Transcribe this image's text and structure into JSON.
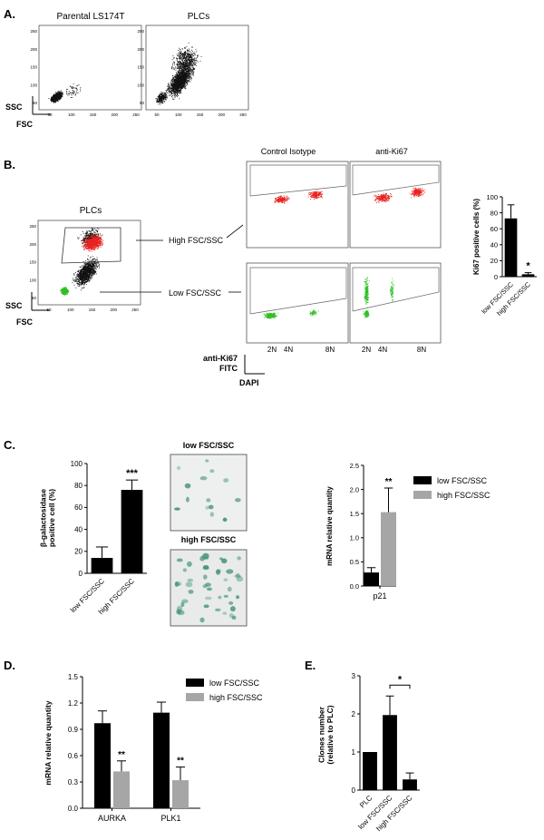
{
  "panels": {
    "A": {
      "letter": "A.",
      "plots": [
        {
          "title": "Parental LS174T",
          "yticks": [
            "250",
            "200",
            "150",
            "100",
            "50"
          ],
          "xticks": [
            "50",
            "100",
            "150",
            "200",
            "250"
          ]
        },
        {
          "title": "PLCs",
          "yticks": [
            "250",
            "200",
            "150",
            "100",
            "50"
          ],
          "xticks": [
            "50",
            "100",
            "150",
            "200",
            "250"
          ]
        }
      ],
      "y_axis": "SSC",
      "x_axis": "FSC"
    },
    "B": {
      "letter": "B.",
      "plc_title": "PLCs",
      "y_axis": "SSC",
      "x_axis": "FSC",
      "gate_high": "High FSC/SSC",
      "gate_low": "Low FSC/SSC",
      "col_titles": [
        "Control Isotype",
        "anti-Ki67"
      ],
      "ki67_axis": [
        "anti-Ki67",
        "FITC"
      ],
      "dapi_axis": "DAPI",
      "ploidy_ticks": [
        "2N",
        "4N",
        "8N"
      ],
      "colors": {
        "high_population": "#e8231f",
        "low_population": "#2fbf24",
        "other_events": "#111111"
      }
    },
    "C": {
      "letter": "C.",
      "micro_titles": [
        "low FSC/SSC",
        "high FSC/SSC"
      ],
      "stain_color": "#3f8f7a"
    },
    "D": {
      "letter": "D."
    },
    "E": {
      "letter": "E."
    }
  },
  "chart_data": [
    {
      "id": "B-ki67",
      "type": "bar",
      "categories": [
        "low FSC/SSC",
        "high FSC/SSC"
      ],
      "values": [
        73,
        3
      ],
      "errors": [
        17,
        2
      ],
      "colors": [
        "#000000",
        "#000000"
      ],
      "significance": [
        "",
        "*"
      ],
      "ylabel": "Ki67 positive cells (%)",
      "ylim": [
        0,
        100
      ],
      "yticks": [
        0,
        20,
        40,
        60,
        80,
        100
      ]
    },
    {
      "id": "C-bgal",
      "type": "bar",
      "categories": [
        "low FSC/SSC",
        "high FSC/SSC"
      ],
      "values": [
        14,
        76
      ],
      "errors": [
        10,
        9
      ],
      "colors": [
        "#000000",
        "#000000"
      ],
      "significance": [
        "",
        "***"
      ],
      "ylabel_lines": [
        "β-galactosidase",
        "positive cell (%)"
      ],
      "ylim": [
        0,
        100
      ],
      "yticks": [
        0,
        20,
        40,
        60,
        80,
        100
      ]
    },
    {
      "id": "C-p21",
      "type": "bar",
      "categories": [
        "p21"
      ],
      "series": [
        {
          "name": "low FSC/SSC",
          "values": [
            0.28
          ],
          "errors": [
            0.1
          ],
          "color": "#000000"
        },
        {
          "name": "high FSC/SSC",
          "values": [
            1.53
          ],
          "errors": [
            0.5
          ],
          "color": "#a6a6a6"
        }
      ],
      "significance": [
        "",
        "**"
      ],
      "ylabel": "mRNA relative quantity",
      "ylim": [
        0,
        2.5
      ],
      "yticks": [
        0,
        0.5,
        1.0,
        1.5,
        2.0,
        2.5
      ],
      "legend": "right"
    },
    {
      "id": "D",
      "type": "bar",
      "categories": [
        "AURKA",
        "PLK1"
      ],
      "series": [
        {
          "name": "low FSC/SSC",
          "values": [
            0.97,
            1.09
          ],
          "errors": [
            0.14,
            0.12
          ],
          "color": "#000000"
        },
        {
          "name": "high FSC/SSC",
          "values": [
            0.42,
            0.32
          ],
          "errors": [
            0.12,
            0.15
          ],
          "color": "#a6a6a6"
        }
      ],
      "significance": [
        [
          "",
          "**"
        ],
        [
          "",
          "**"
        ]
      ],
      "ylabel": "mRNA relative quantity",
      "ylim": [
        0,
        1.5
      ],
      "yticks": [
        0.0,
        0.3,
        0.6,
        0.9,
        1.2,
        1.5
      ],
      "legend": "top-right"
    },
    {
      "id": "E",
      "type": "bar",
      "categories": [
        "PLC",
        "low FSC/SSC",
        "high FSC/SSC"
      ],
      "values": [
        1.0,
        1.97,
        0.28
      ],
      "errors": [
        0,
        0.5,
        0.17
      ],
      "colors": [
        "#000000",
        "#000000",
        "#000000"
      ],
      "bracket": {
        "from": 1,
        "to": 2,
        "label": "*"
      },
      "ylabel_lines": [
        "Clones number",
        "(relative to PLC)"
      ],
      "ylim": [
        0,
        3
      ],
      "yticks": [
        0,
        1,
        2,
        3
      ]
    }
  ]
}
